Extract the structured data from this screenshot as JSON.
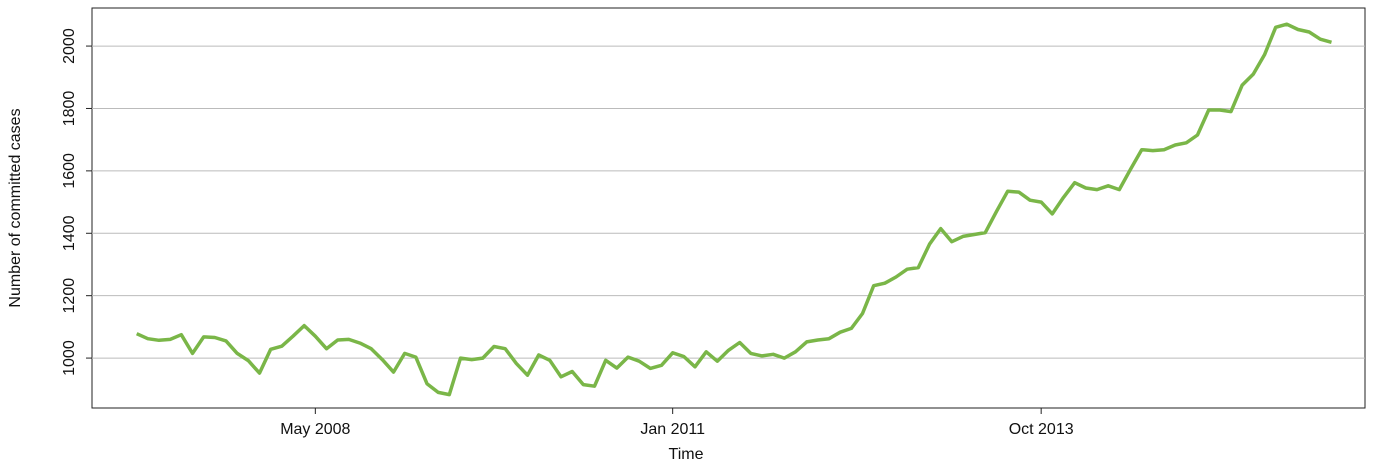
{
  "chart_data": {
    "type": "line",
    "x_label": "Time",
    "y_label": "Number of committed cases",
    "x": [
      "Jan 2007",
      "Feb 2007",
      "Mar 2007",
      "Apr 2007",
      "May 2007",
      "Jun 2007",
      "Jul 2007",
      "Aug 2007",
      "Sep 2007",
      "Oct 2007",
      "Nov 2007",
      "Dec 2007",
      "Jan 2008",
      "Feb 2008",
      "Mar 2008",
      "Apr 2008",
      "May 2008",
      "Jun 2008",
      "Jul 2008",
      "Aug 2008",
      "Sep 2008",
      "Oct 2008",
      "Nov 2008",
      "Dec 2008",
      "Jan 2009",
      "Feb 2009",
      "Mar 2009",
      "Apr 2009",
      "May 2009",
      "Jun 2009",
      "Jul 2009",
      "Aug 2009",
      "Sep 2009",
      "Oct 2009",
      "Nov 2009",
      "Dec 2009",
      "Jan 2010",
      "Feb 2010",
      "Mar 2010",
      "Apr 2010",
      "May 2010",
      "Jun 2010",
      "Jul 2010",
      "Aug 2010",
      "Sep 2010",
      "Oct 2010",
      "Nov 2010",
      "Dec 2010",
      "Jan 2011",
      "Feb 2011",
      "Mar 2011",
      "Apr 2011",
      "May 2011",
      "Jun 2011",
      "Jul 2011",
      "Aug 2011",
      "Sep 2011",
      "Oct 2011",
      "Nov 2011",
      "Dec 2011",
      "Jan 2012",
      "Feb 2012",
      "Mar 2012",
      "Apr 2012",
      "May 2012",
      "Jun 2012",
      "Jul 2012",
      "Aug 2012",
      "Sep 2012",
      "Oct 2012",
      "Nov 2012",
      "Dec 2012",
      "Jan 2013",
      "Feb 2013",
      "Mar 2013",
      "Apr 2013",
      "May 2013",
      "Jun 2013",
      "Jul 2013",
      "Aug 2013",
      "Sep 2013",
      "Oct 2013",
      "Nov 2013",
      "Dec 2013",
      "Jan 2014",
      "Feb 2014",
      "Mar 2014",
      "Apr 2014",
      "May 2014",
      "Jun 2014",
      "Jul 2014",
      "Aug 2014",
      "Sep 2014",
      "Oct 2014",
      "Nov 2014",
      "Dec 2014",
      "Jan 2015",
      "Feb 2015",
      "Mar 2015",
      "Apr 2015",
      "May 2015",
      "Jun 2015",
      "Jul 2015",
      "Aug 2015",
      "Sep 2015",
      "Oct 2015",
      "Nov 2015",
      "Dec 2015"
    ],
    "values": [
      1078,
      1062,
      1057,
      1060,
      1075,
      1015,
      1068,
      1066,
      1055,
      1015,
      992,
      952,
      1028,
      1038,
      1070,
      1104,
      1070,
      1030,
      1058,
      1060,
      1048,
      1030,
      995,
      955,
      1015,
      1003,
      918,
      890,
      883,
      1000,
      995,
      1000,
      1037,
      1030,
      983,
      945,
      1010,
      993,
      940,
      957,
      915,
      910,
      993,
      968,
      1003,
      990,
      967,
      977,
      1017,
      1005,
      972,
      1020,
      990,
      1025,
      1050,
      1015,
      1007,
      1012,
      1000,
      1020,
      1052,
      1058,
      1062,
      1083,
      1095,
      1143,
      1232,
      1240,
      1260,
      1285,
      1290,
      1365,
      1415,
      1373,
      1390,
      1396,
      1402,
      1470,
      1535,
      1532,
      1506,
      1500,
      1462,
      1515,
      1562,
      1545,
      1540,
      1552,
      1540,
      1605,
      1668,
      1665,
      1668,
      1683,
      1690,
      1715,
      1795,
      1795,
      1790,
      1875,
      1910,
      1972,
      2060,
      2070,
      2053,
      2045,
      2022,
      2012
    ],
    "color": "#7ab648",
    "xlim": [
      "Sep 2006",
      "Mar 2016"
    ],
    "xticks": [
      "May 2008",
      "Jan 2011",
      "Oct 2013"
    ],
    "ylim": [
      840,
      2122
    ],
    "yticks": [
      1000,
      1200,
      1400,
      1600,
      1800,
      2000
    ],
    "grid": true
  }
}
